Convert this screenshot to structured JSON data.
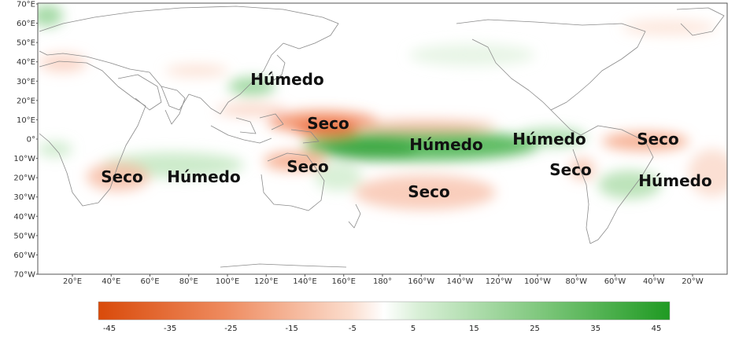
{
  "map": {
    "lat_labels": [
      "70°E",
      "60°E",
      "50°E",
      "40°E",
      "30°E",
      "20°E",
      "10°E",
      "0°",
      "10°W",
      "20°W",
      "30°W",
      "40°W",
      "50°W",
      "60°W",
      "70°W"
    ],
    "lon_labels": [
      "20°E",
      "40°E",
      "60°E",
      "80°E",
      "100°E",
      "120°E",
      "140°E",
      "160°E",
      "180°",
      "160°W",
      "140°W",
      "120°W",
      "100°W",
      "80°W",
      "60°W",
      "40°W",
      "20°W"
    ],
    "regions": [
      {
        "id": "humedo-east-asia",
        "label": "Húmedo",
        "effect": "wet"
      },
      {
        "id": "seco-western-pacific",
        "label": "Seco",
        "effect": "dry"
      },
      {
        "id": "humedo-central-pacific",
        "label": "Húmedo",
        "effect": "wet"
      },
      {
        "id": "humedo-central-america",
        "label": "Húmedo",
        "effect": "wet"
      },
      {
        "id": "seco-northern-brazil",
        "label": "Seco",
        "effect": "dry"
      },
      {
        "id": "seco-southern-africa",
        "label": "Seco",
        "effect": "dry"
      },
      {
        "id": "humedo-indian-ocean",
        "label": "Húmedo",
        "effect": "wet"
      },
      {
        "id": "seco-australia",
        "label": "Seco",
        "effect": "dry"
      },
      {
        "id": "seco-south-pacific",
        "label": "Seco",
        "effect": "dry"
      },
      {
        "id": "seco-andes",
        "label": "Seco",
        "effect": "dry"
      },
      {
        "id": "humedo-southern-brazil",
        "label": "Húmedo",
        "effect": "wet"
      }
    ]
  },
  "colorbar": {
    "ticks": [
      "-45",
      "-35",
      "-25",
      "-15",
      "-5",
      "5",
      "15",
      "25",
      "35",
      "45"
    ],
    "colors": {
      "dry": "#d94a0a",
      "neutral": "#ffffff",
      "wet": "#2a9d2a"
    }
  }
}
